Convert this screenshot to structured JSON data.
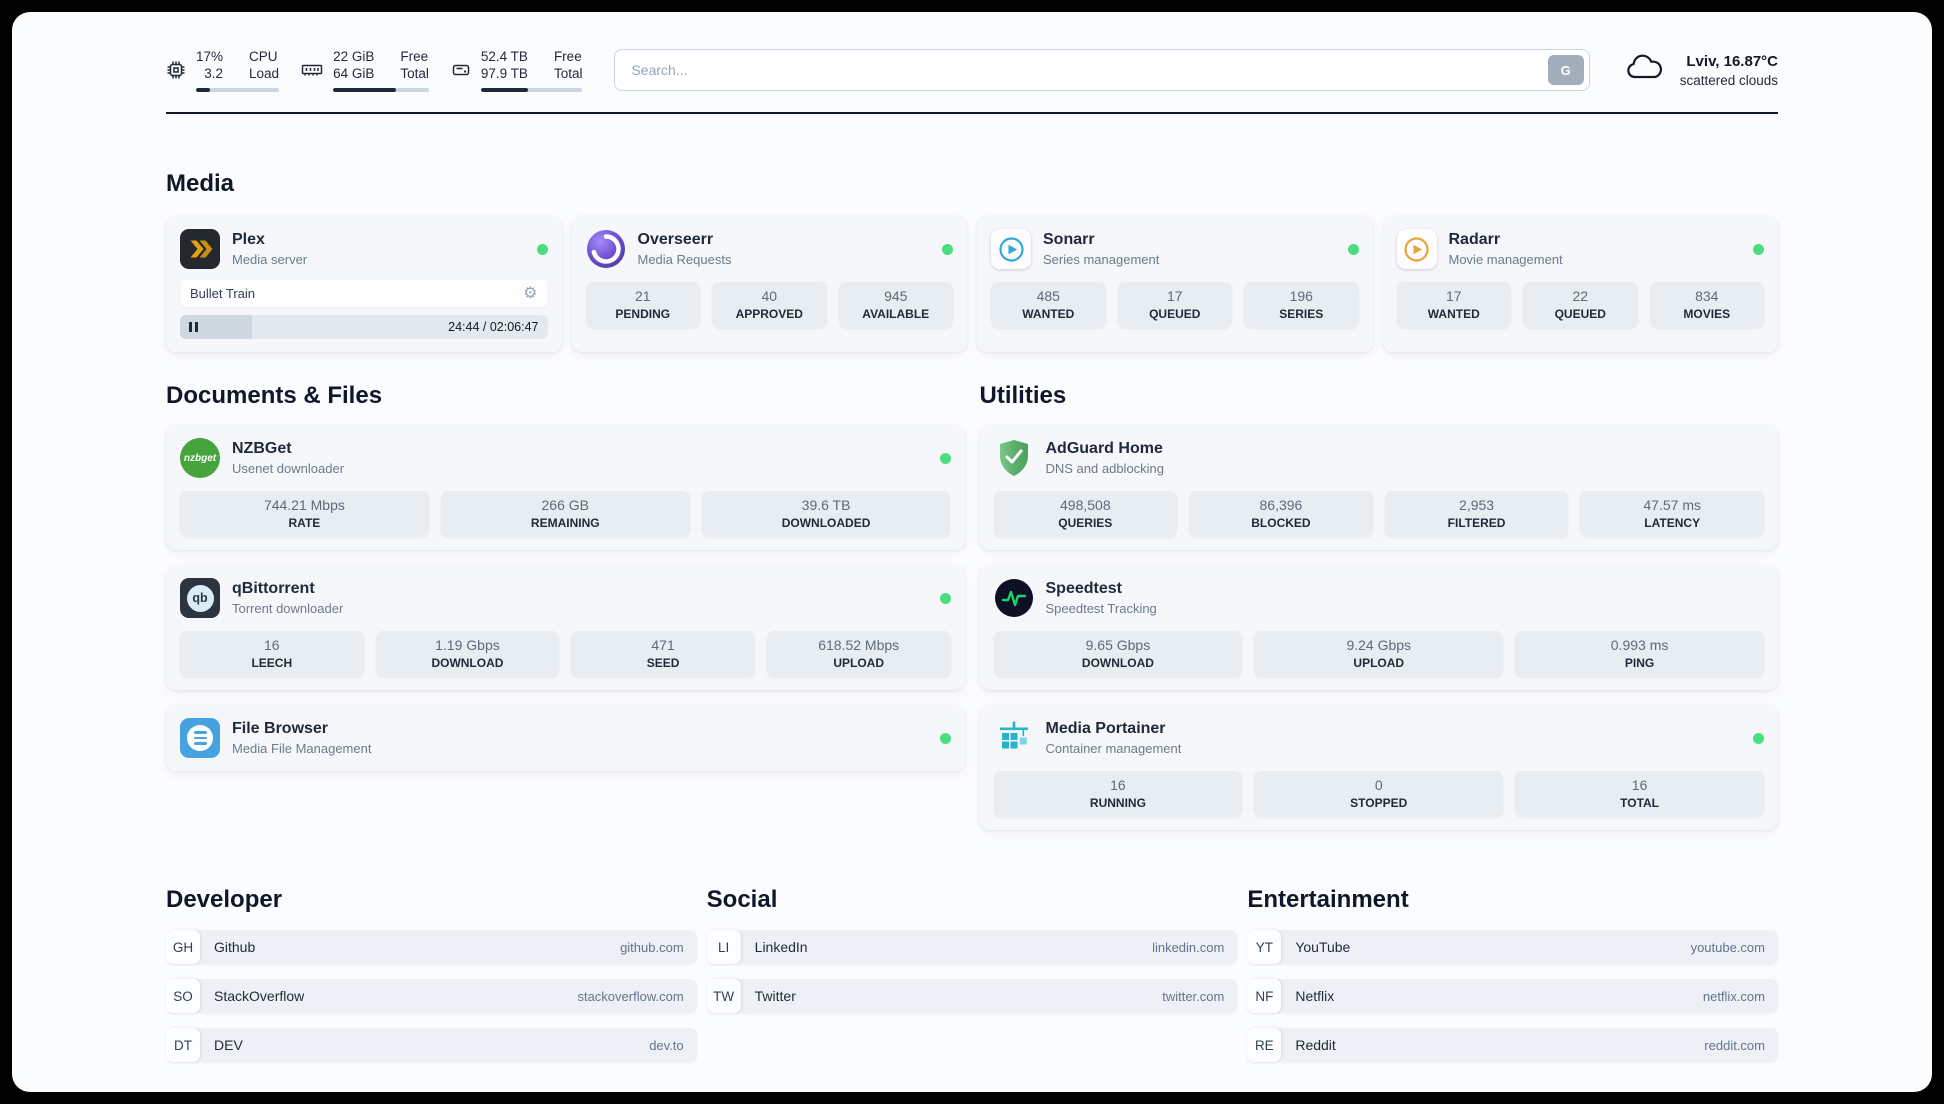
{
  "colors": {
    "status_online": "#4ade80",
    "accent_dark": "#1e293b"
  },
  "topbar": {
    "cpu": {
      "line1": "17%",
      "line2": "3.2",
      "label1": "CPU",
      "label2": "Load",
      "percent": 17
    },
    "memory": {
      "line1": "22 GiB",
      "line2": "64 GiB",
      "label1": "Free",
      "label2": "Total",
      "percent": 66
    },
    "disk": {
      "line1": "52.4 TB",
      "line2": "97.9 TB",
      "label1": "Free",
      "label2": "Total",
      "percent": 46
    },
    "search": {
      "placeholder": "Search...",
      "button_label": "G"
    },
    "weather": {
      "location": "Lviv, 16.87°C",
      "condition": "scattered clouds"
    }
  },
  "media": {
    "title": "Media",
    "plex": {
      "name": "Plex",
      "subtitle": "Media server",
      "now_playing": "Bullet Train",
      "time": "24:44 / 02:06:47",
      "progress_percent": 19.5
    },
    "overseerr": {
      "name": "Overseerr",
      "subtitle": "Media Requests",
      "stats": [
        {
          "value": "21",
          "label": "PENDING"
        },
        {
          "value": "40",
          "label": "APPROVED"
        },
        {
          "value": "945",
          "label": "AVAILABLE"
        }
      ]
    },
    "sonarr": {
      "name": "Sonarr",
      "subtitle": "Series management",
      "stats": [
        {
          "value": "485",
          "label": "WANTED"
        },
        {
          "value": "17",
          "label": "QUEUED"
        },
        {
          "value": "196",
          "label": "SERIES"
        }
      ]
    },
    "radarr": {
      "name": "Radarr",
      "subtitle": "Movie management",
      "stats": [
        {
          "value": "17",
          "label": "WANTED"
        },
        {
          "value": "22",
          "label": "QUEUED"
        },
        {
          "value": "834",
          "label": "MOVIES"
        }
      ]
    }
  },
  "documents": {
    "title": "Documents & Files",
    "nzbget": {
      "name": "NZBGet",
      "subtitle": "Usenet downloader",
      "logo_text": "nzbget",
      "stats": [
        {
          "value": "744.21 Mbps",
          "label": "RATE"
        },
        {
          "value": "266 GB",
          "label": "REMAINING"
        },
        {
          "value": "39.6 TB",
          "label": "DOWNLOADED"
        }
      ]
    },
    "qbittorrent": {
      "name": "qBittorrent",
      "subtitle": "Torrent downloader",
      "logo_text": "qb",
      "stats": [
        {
          "value": "16",
          "label": "LEECH"
        },
        {
          "value": "1.19 Gbps",
          "label": "DOWNLOAD"
        },
        {
          "value": "471",
          "label": "SEED"
        },
        {
          "value": "618.52 Mbps",
          "label": "UPLOAD"
        }
      ]
    },
    "filebrowser": {
      "name": "File Browser",
      "subtitle": "Media File Management"
    }
  },
  "utilities": {
    "title": "Utilities",
    "adguard": {
      "name": "AdGuard Home",
      "subtitle": "DNS and adblocking",
      "stats": [
        {
          "value": "498,508",
          "label": "QUERIES"
        },
        {
          "value": "86,396",
          "label": "BLOCKED"
        },
        {
          "value": "2,953",
          "label": "FILTERED"
        },
        {
          "value": "47.57 ms",
          "label": "LATENCY"
        }
      ]
    },
    "speedtest": {
      "name": "Speedtest",
      "subtitle": "Speedtest Tracking",
      "stats": [
        {
          "value": "9.65 Gbps",
          "label": "DOWNLOAD"
        },
        {
          "value": "9.24 Gbps",
          "label": "UPLOAD"
        },
        {
          "value": "0.993 ms",
          "label": "PING"
        }
      ]
    },
    "portainer": {
      "name": "Media Portainer",
      "subtitle": "Container management",
      "stats": [
        {
          "value": "16",
          "label": "RUNNING"
        },
        {
          "value": "0",
          "label": "STOPPED"
        },
        {
          "value": "16",
          "label": "TOTAL"
        }
      ]
    }
  },
  "bookmarks": {
    "developer": {
      "title": "Developer",
      "items": [
        {
          "abbr": "GH",
          "name": "Github",
          "url": "github.com"
        },
        {
          "abbr": "SO",
          "name": "StackOverflow",
          "url": "stackoverflow.com"
        },
        {
          "abbr": "DT",
          "name": "DEV",
          "url": "dev.to"
        }
      ]
    },
    "social": {
      "title": "Social",
      "items": [
        {
          "abbr": "LI",
          "name": "LinkedIn",
          "url": "linkedin.com"
        },
        {
          "abbr": "TW",
          "name": "Twitter",
          "url": "twitter.com"
        }
      ]
    },
    "entertainment": {
      "title": "Entertainment",
      "items": [
        {
          "abbr": "YT",
          "name": "YouTube",
          "url": "youtube.com"
        },
        {
          "abbr": "NF",
          "name": "Netflix",
          "url": "netflix.com"
        },
        {
          "abbr": "RE",
          "name": "Reddit",
          "url": "reddit.com"
        }
      ]
    }
  }
}
